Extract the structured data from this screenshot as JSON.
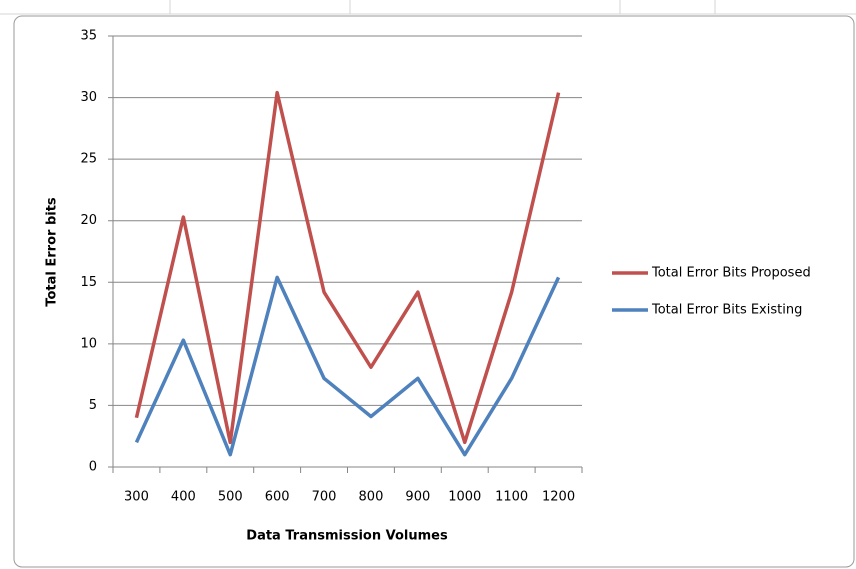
{
  "chart_data": {
    "type": "line",
    "xlabel": "Data Transmission  Volumes",
    "ylabel": "Total Error bits",
    "categories": [
      "300",
      "400",
      "500",
      "600",
      "700",
      "800",
      "900",
      "1000",
      "1100",
      "1200"
    ],
    "series": [
      {
        "name": "Total Error Bits Proposed",
        "color": "#c0504d",
        "values": [
          4,
          20.3,
          2,
          30.4,
          14.2,
          8.1,
          14.2,
          2,
          14.2,
          30.4
        ]
      },
      {
        "name": "Total Error Bits Existing",
        "color": "#4f81bd",
        "values": [
          2,
          10.3,
          1,
          15.4,
          7.2,
          4.1,
          7.2,
          1,
          7.2,
          15.4
        ]
      }
    ],
    "ylim": [
      0,
      35
    ],
    "yticks": [
      0,
      5,
      10,
      15,
      20,
      25,
      30,
      35
    ],
    "grid": true,
    "legend": "right"
  }
}
